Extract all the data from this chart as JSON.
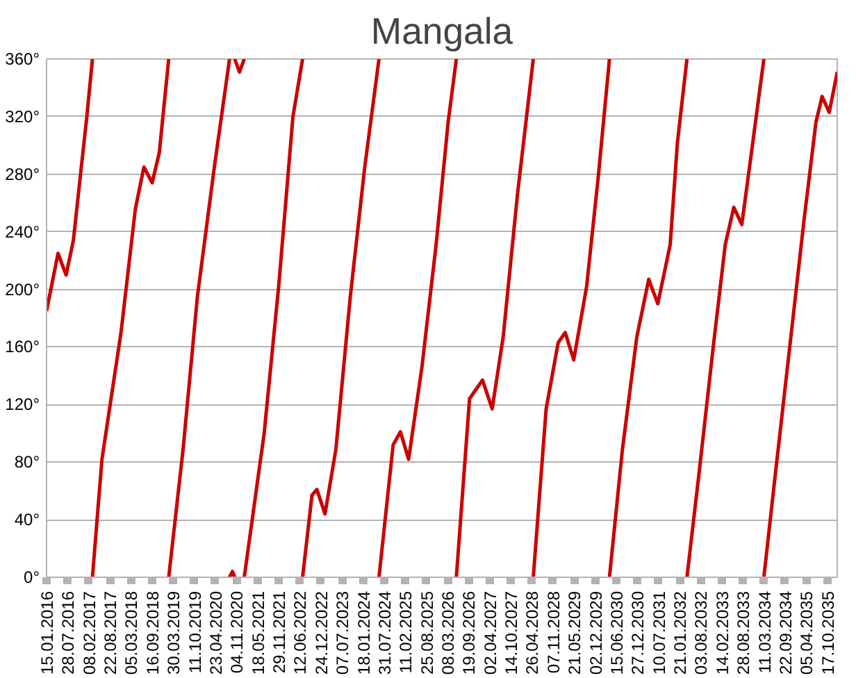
{
  "chart_data": {
    "type": "line",
    "title": "Mangala",
    "grid": "y",
    "marker": "none",
    "line_style": "solid",
    "xlim": [
      "2016-01-15",
      "2036-01-17"
    ],
    "ylim": [
      0,
      360
    ],
    "yticks": [
      {
        "value": 0,
        "label": "0°"
      },
      {
        "value": 40,
        "label": "40°"
      },
      {
        "value": 80,
        "label": "80°"
      },
      {
        "value": 120,
        "label": "120°"
      },
      {
        "value": 160,
        "label": "160°"
      },
      {
        "value": 200,
        "label": "200°"
      },
      {
        "value": 240,
        "label": "240°"
      },
      {
        "value": 280,
        "label": "280°"
      },
      {
        "value": 320,
        "label": "320°"
      },
      {
        "value": 360,
        "label": "360°"
      }
    ],
    "xticks": [
      {
        "value": "2016-01-15",
        "label": "15.01.2016"
      },
      {
        "value": "2016-07-28",
        "label": "28.07.2016"
      },
      {
        "value": "2017-02-08",
        "label": "08.02.2017"
      },
      {
        "value": "2017-08-22",
        "label": "22.08.2017"
      },
      {
        "value": "2018-03-05",
        "label": "05.03.2018"
      },
      {
        "value": "2018-09-16",
        "label": "16.09.2018"
      },
      {
        "value": "2019-03-30",
        "label": "30.03.2019"
      },
      {
        "value": "2019-10-11",
        "label": "11.10.2019"
      },
      {
        "value": "2020-04-23",
        "label": "23.04.2020"
      },
      {
        "value": "2020-11-04",
        "label": "04.11.2020"
      },
      {
        "value": "2021-05-18",
        "label": "18.05.2021"
      },
      {
        "value": "2021-11-29",
        "label": "29.11.2021"
      },
      {
        "value": "2022-06-12",
        "label": "12.06.2022"
      },
      {
        "value": "2022-12-24",
        "label": "24.12.2022"
      },
      {
        "value": "2023-07-07",
        "label": "07.07.2023"
      },
      {
        "value": "2024-01-18",
        "label": "18.01.2024"
      },
      {
        "value": "2024-07-31",
        "label": "31.07.2024"
      },
      {
        "value": "2025-02-11",
        "label": "11.02.2025"
      },
      {
        "value": "2025-08-25",
        "label": "25.08.2025"
      },
      {
        "value": "2026-03-08",
        "label": "08.03.2026"
      },
      {
        "value": "2026-09-19",
        "label": "19.09.2026"
      },
      {
        "value": "2027-04-02",
        "label": "02.04.2027"
      },
      {
        "value": "2027-10-14",
        "label": "14.10.2027"
      },
      {
        "value": "2028-04-26",
        "label": "26.04.2028"
      },
      {
        "value": "2028-11-07",
        "label": "07.11.2028"
      },
      {
        "value": "2029-05-21",
        "label": "21.05.2029"
      },
      {
        "value": "2029-12-02",
        "label": "02.12.2029"
      },
      {
        "value": "2030-06-15",
        "label": "15.06.2030"
      },
      {
        "value": "2030-12-27",
        "label": "27.12.2030"
      },
      {
        "value": "2031-07-10",
        "label": "10.07.2031"
      },
      {
        "value": "2032-01-21",
        "label": "21.01.2032"
      },
      {
        "value": "2032-08-03",
        "label": "03.08.2032"
      },
      {
        "value": "2033-02-14",
        "label": "14.02.2033"
      },
      {
        "value": "2033-08-28",
        "label": "28.08.2033"
      },
      {
        "value": "2034-03-11",
        "label": "11.03.2034"
      },
      {
        "value": "2034-09-22",
        "label": "22.09.2034"
      },
      {
        "value": "2035-04-05",
        "label": "05.04.2035"
      },
      {
        "value": "2035-10-17",
        "label": "17.10.2035"
      }
    ],
    "series": [
      {
        "color": "#cc0000",
        "x": [
          "2016-01-15",
          "2016-04-30",
          "2016-07-14",
          "2016-09-19",
          "2016-11-24",
          "2017-01-20",
          "2017-03-14"
        ],
        "values": [
          185,
          225,
          210,
          234,
          280,
          319,
          360
        ]
      },
      {
        "color": "#cc0000",
        "x": [
          "2017-03-14",
          "2017-06-10",
          "2017-12-03",
          "2018-04-15",
          "2018-07-03",
          "2018-09-17",
          "2018-11-22",
          "2019-02-17"
        ],
        "values": [
          0,
          82,
          170,
          256,
          285,
          274,
          295,
          360
        ]
      },
      {
        "color": "#cc0000",
        "x": [
          "2019-02-17",
          "2019-06-30",
          "2019-11-09",
          "2020-04-12",
          "2020-09-01"
        ],
        "values": [
          0,
          89,
          195,
          284,
          360
        ]
      },
      {
        "color": "#cc0000",
        "x": [
          "2020-10-19",
          "2020-12-02",
          "2021-01-15"
        ],
        "values": [
          360,
          351,
          360
        ]
      },
      {
        "color": "#cc0000",
        "x": [
          "2021-01-15",
          "2021-07-18",
          "2021-11-29",
          "2022-04-10",
          "2022-07-08"
        ],
        "values": [
          0,
          100,
          202,
          320,
          360
        ]
      },
      {
        "color": "#cc0000",
        "x": [
          "2022-07-08",
          "2022-10-03",
          "2022-11-17",
          "2023-01-31",
          "2023-05-12",
          "2023-09-22",
          "2024-02-01",
          "2024-06-13"
        ],
        "values": [
          0,
          57,
          61,
          44,
          89,
          195,
          284,
          360
        ]
      },
      {
        "color": "#cc0000",
        "x": [
          "2024-06-13",
          "2024-10-22",
          "2024-12-28",
          "2025-03-14",
          "2025-07-15",
          "2025-11-23",
          "2026-03-14",
          "2026-05-29"
        ],
        "values": [
          0,
          92,
          101,
          82,
          146,
          231,
          316,
          360
        ]
      },
      {
        "color": "#cc0000",
        "x": [
          "2026-05-29",
          "2026-09-28",
          "2027-01-26",
          "2027-04-25",
          "2027-08-05",
          "2027-12-15",
          "2028-05-09"
        ],
        "values": [
          0,
          124,
          137,
          117,
          167,
          266,
          360
        ]
      },
      {
        "color": "#cc0000",
        "x": [
          "2028-05-09",
          "2028-09-05",
          "2028-12-25",
          "2029-02-28",
          "2029-05-18",
          "2029-09-14",
          "2030-01-02",
          "2030-04-13"
        ],
        "values": [
          0,
          117,
          163,
          170,
          151,
          202,
          280,
          360
        ]
      },
      {
        "color": "#cc0000",
        "x": [
          "2030-04-13",
          "2030-08-11",
          "2030-12-22",
          "2031-04-11",
          "2031-07-04",
          "2031-10-26",
          "2032-01-01",
          "2032-03-29"
        ],
        "values": [
          0,
          89,
          167,
          207,
          190,
          231,
          302,
          360
        ]
      },
      {
        "color": "#cc0000",
        "x": [
          "2032-03-29",
          "2032-07-17",
          "2032-11-27",
          "2033-03-18",
          "2033-06-05",
          "2033-08-18",
          "2033-11-15",
          "2034-03-10"
        ],
        "values": [
          0,
          71,
          160,
          231,
          257,
          245,
          295,
          360
        ]
      },
      {
        "color": "#cc0000",
        "x": [
          "2034-03-10",
          "2034-06-23",
          "2034-11-04",
          "2035-03-16",
          "2035-07-04",
          "2035-08-30",
          "2035-11-04",
          "2036-01-17"
        ],
        "values": [
          0,
          71,
          160,
          248,
          316,
          334,
          323,
          351
        ]
      },
      {
        "color": "#cc0000",
        "x": [
          "2020-09-01",
          "2020-09-28",
          "2020-10-19"
        ],
        "values": [
          0,
          4,
          0
        ]
      }
    ]
  }
}
